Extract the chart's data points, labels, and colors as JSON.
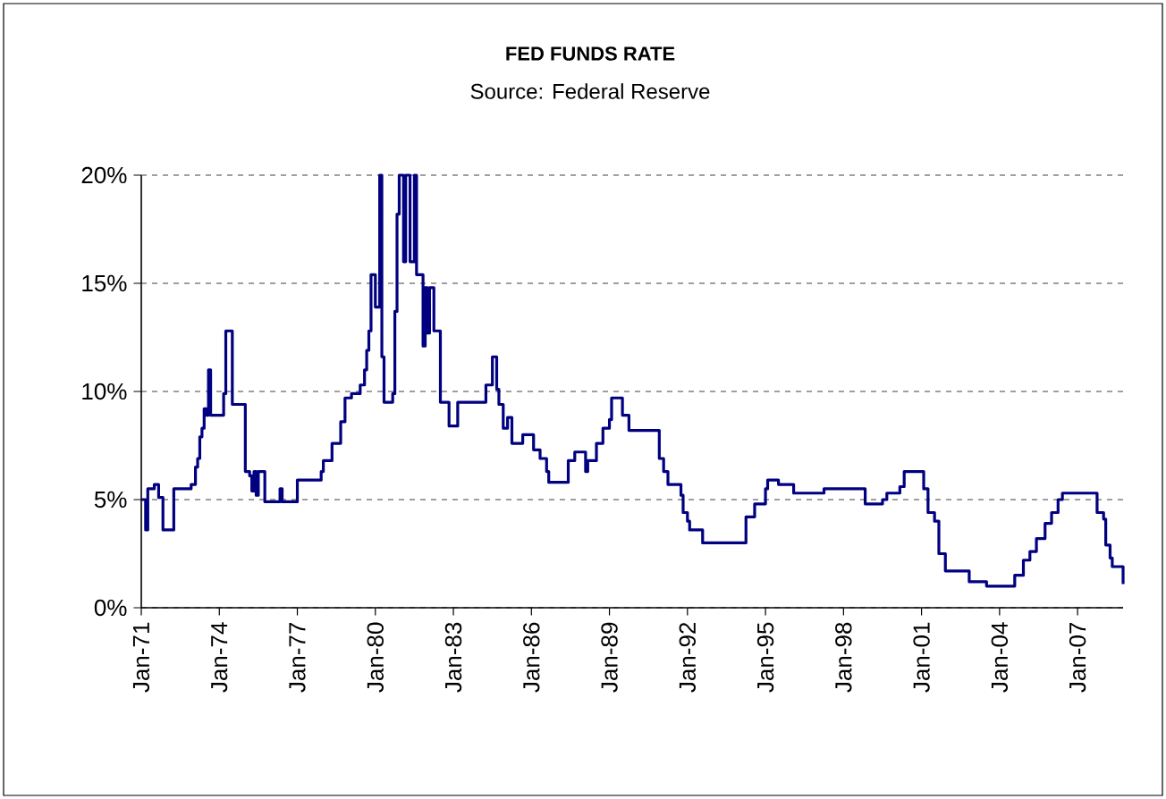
{
  "chart_data": {
    "type": "step",
    "title": "FED FUNDS RATE",
    "subtitle": "Source: Federal Reserve",
    "x": [
      "1971-01",
      "1971-03",
      "1971-04",
      "1971-07",
      "1971-09",
      "1971-11",
      "1972-04",
      "1972-12",
      "1973-02",
      "1973-03",
      "1973-04",
      "1973-05",
      "1973-06",
      "1973-07",
      "1973-08",
      "1973-09",
      "1974-03",
      "1974-04",
      "1974-07",
      "1975-01",
      "1975-03",
      "1975-04",
      "1975-05",
      "1975-06",
      "1975-07",
      "1975-10",
      "1976-05",
      "1976-06",
      "1977-01",
      "1977-12",
      "1978-01",
      "1978-05",
      "1978-09",
      "1978-11",
      "1979-02",
      "1979-06",
      "1979-08",
      "1979-09",
      "1979-10",
      "1979-11",
      "1980-01",
      "1980-03",
      "1980-04",
      "1980-05",
      "1980-09",
      "1980-10",
      "1980-11",
      "1980-12",
      "1981-02",
      "1981-03",
      "1981-05",
      "1981-07",
      "1981-08",
      "1981-11",
      "1981-12",
      "1982-01",
      "1982-02",
      "1982-04",
      "1982-07",
      "1982-11",
      "1983-03",
      "1984-04",
      "1984-07",
      "1984-09",
      "1984-10",
      "1984-12",
      "1985-02",
      "1985-04",
      "1985-09",
      "1986-02",
      "1986-05",
      "1986-08",
      "1986-09",
      "1987-06",
      "1987-09",
      "1988-02",
      "1988-03",
      "1988-07",
      "1988-10",
      "1989-01",
      "1989-02",
      "1989-07",
      "1989-10",
      "1990-12",
      "1991-02",
      "1991-04",
      "1991-10",
      "1991-11",
      "1992-01",
      "1992-02",
      "1992-08",
      "1994-04",
      "1994-08",
      "1995-01",
      "1995-02",
      "1995-07",
      "1996-02",
      "1997-04",
      "1998-11",
      "1999-07",
      "1999-09",
      "2000-03",
      "2000-05",
      "2001-02",
      "2001-04",
      "2001-07",
      "2001-09",
      "2001-12",
      "2002-11",
      "2003-07",
      "2004-08",
      "2004-12",
      "2005-03",
      "2005-06",
      "2005-10",
      "2006-01",
      "2006-04",
      "2006-06",
      "2007-10",
      "2008-01",
      "2008-02",
      "2008-04",
      "2008-05",
      "2008-10"
    ],
    "series": [
      {
        "color": "#000080",
        "values": [
          5.0,
          3.6,
          5.5,
          5.7,
          5.1,
          3.6,
          5.5,
          5.7,
          6.5,
          6.9,
          7.9,
          8.3,
          9.2,
          8.9,
          11.0,
          8.9,
          9.9,
          12.8,
          9.4,
          6.3,
          6.1,
          5.4,
          6.3,
          5.2,
          6.3,
          4.9,
          5.5,
          4.9,
          5.9,
          6.3,
          6.8,
          7.6,
          8.6,
          9.7,
          9.9,
          10.3,
          11.0,
          11.9,
          12.8,
          15.4,
          13.9,
          20.0,
          11.6,
          9.5,
          9.9,
          13.7,
          18.2,
          20.0,
          16.0,
          20.0,
          16.0,
          20.0,
          15.4,
          12.1,
          14.8,
          12.7,
          14.8,
          12.8,
          9.5,
          8.4,
          9.5,
          10.3,
          11.6,
          10.1,
          9.4,
          8.3,
          8.8,
          7.6,
          8.0,
          7.3,
          6.9,
          6.3,
          5.8,
          6.8,
          7.2,
          6.3,
          6.8,
          7.6,
          8.3,
          8.7,
          9.7,
          8.9,
          8.2,
          6.9,
          6.3,
          5.7,
          5.2,
          4.4,
          4.0,
          3.6,
          3.0,
          4.2,
          4.8,
          5.5,
          5.9,
          5.7,
          5.3,
          5.5,
          4.8,
          5.0,
          5.3,
          5.6,
          6.3,
          5.5,
          4.4,
          4.0,
          2.5,
          1.7,
          1.2,
          1.0,
          1.5,
          2.2,
          2.6,
          3.2,
          3.9,
          4.4,
          5.0,
          5.3,
          4.4,
          4.1,
          2.9,
          2.3,
          1.9,
          1.1
        ]
      }
    ],
    "xlim": [
      "1971-01",
      "2008-10"
    ],
    "xticks": [
      {
        "value": "1971-01",
        "label": "Jan-71"
      },
      {
        "value": "1974-01",
        "label": "Jan-74"
      },
      {
        "value": "1977-01",
        "label": "Jan-77"
      },
      {
        "value": "1980-01",
        "label": "Jan-80"
      },
      {
        "value": "1983-01",
        "label": "Jan-83"
      },
      {
        "value": "1986-01",
        "label": "Jan-86"
      },
      {
        "value": "1989-01",
        "label": "Jan-89"
      },
      {
        "value": "1992-01",
        "label": "Jan-92"
      },
      {
        "value": "1995-01",
        "label": "Jan-95"
      },
      {
        "value": "1998-01",
        "label": "Jan-98"
      },
      {
        "value": "2001-01",
        "label": "Jan-01"
      },
      {
        "value": "2004-01",
        "label": "Jan-04"
      },
      {
        "value": "2007-01",
        "label": "Jan-07"
      }
    ],
    "ylim": [
      0,
      20
    ],
    "yticks": [
      {
        "value": 0,
        "label": "0%"
      },
      {
        "value": 5,
        "label": "5%"
      },
      {
        "value": 10,
        "label": "10%"
      },
      {
        "value": 15,
        "label": "15%"
      },
      {
        "value": 20,
        "label": "20%"
      }
    ],
    "grid": "y"
  }
}
